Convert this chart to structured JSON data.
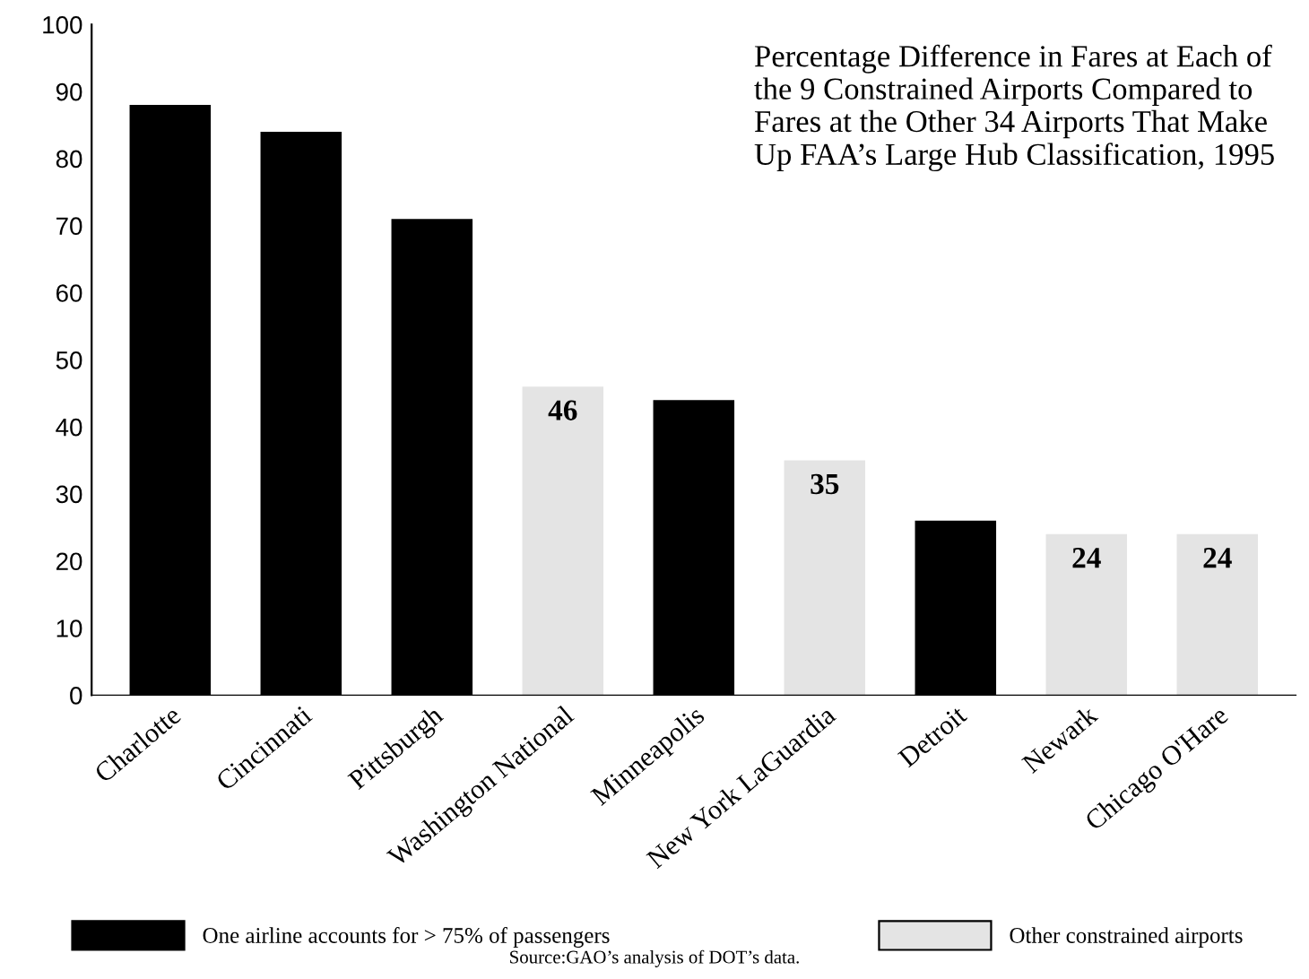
{
  "chart_data": {
    "type": "bar",
    "title": "Percentage Difference in Fares at Each of the 9 Constrained Airports Compared to Fares at the Other 34 Airports That Make Up FAA’s Large Hub Classification, 1995",
    "categories": [
      "Charlotte",
      "Cincinnati",
      "Pittsburgh",
      "Washington National",
      "Minneapolis",
      "New York LaGuardia",
      "Detroit",
      "Newark",
      "Chicago O'Hare"
    ],
    "series": [
      {
        "name": "One airline accounts for > 75% of passengers",
        "color": "#000000",
        "values": [
          88,
          84,
          71,
          null,
          44,
          null,
          26,
          null,
          null
        ]
      },
      {
        "name": "Other constrained airports",
        "color": "#e4e4e4",
        "values": [
          null,
          null,
          null,
          46,
          null,
          35,
          null,
          24,
          24
        ],
        "value_labels": [
          null,
          null,
          null,
          "46",
          null,
          "35",
          null,
          "24",
          "24"
        ]
      }
    ],
    "ylim": [
      0,
      100
    ],
    "yticks": [
      0,
      10,
      20,
      30,
      40,
      50,
      60,
      70,
      80,
      90,
      100
    ],
    "grid": false,
    "legend": "bottom",
    "annotations": [
      "Source:GAO’s analysis of DOT’s data."
    ]
  }
}
